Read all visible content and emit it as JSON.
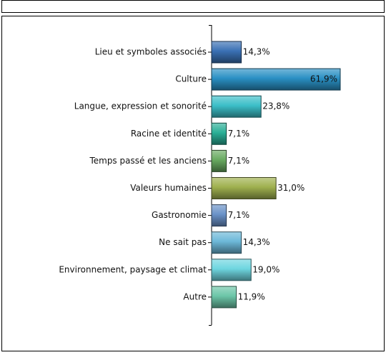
{
  "chart_data": {
    "type": "bar",
    "orientation": "horizontal",
    "categories": [
      "Lieu et symboles associés",
      "Culture",
      "Langue, expression et sonorité",
      "Racine et identité",
      "Temps passé et les anciens",
      "Valeurs humaines",
      "Gastronomie",
      "Ne sait pas",
      "Environnement, paysage et climat",
      "Autre"
    ],
    "values": [
      14.3,
      61.9,
      23.8,
      7.1,
      7.1,
      31.0,
      7.1,
      14.3,
      19.0,
      11.9
    ],
    "value_labels": [
      "14,3%",
      "61,9%",
      "23,8%",
      "7,1%",
      "7,1%",
      "31,0%",
      "7,1%",
      "14,3%",
      "19,0%",
      "11,9%"
    ],
    "colors": [
      "#3a70b4",
      "#2a90c4",
      "#3cbfc8",
      "#2aaf96",
      "#68aa60",
      "#9fb04e",
      "#6a92c8",
      "#6cb8d8",
      "#6ed6e0",
      "#6cc6a8"
    ]
  }
}
